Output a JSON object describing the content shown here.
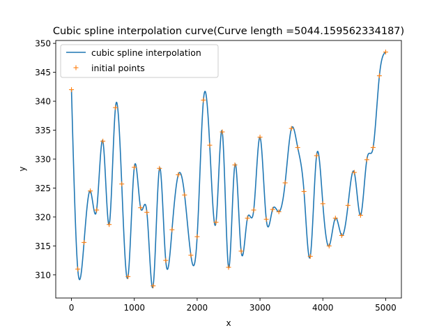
{
  "chart_data": {
    "type": "line",
    "title": "Cubic spline interpolation curve(Curve length =5044.159562334187)",
    "xlabel": "x",
    "ylabel": "y",
    "xlim": [
      -250,
      5250
    ],
    "ylim": [
      306,
      350.5
    ],
    "xticks": [
      0,
      1000,
      2000,
      3000,
      4000,
      5000
    ],
    "yticks": [
      310,
      315,
      320,
      325,
      330,
      335,
      340,
      345,
      350
    ],
    "legend_position": "upper-left",
    "grid": false,
    "colors": {
      "curve": "#1f77b4",
      "points": "#ff7f0e"
    },
    "series": [
      {
        "name": "cubic spline interpolation",
        "style": "line",
        "source": "spline-of-points"
      },
      {
        "name": "initial points",
        "style": "marker-plus",
        "x": [
          0,
          100,
          200,
          300,
          400,
          500,
          600,
          700,
          800,
          900,
          1000,
          1100,
          1200,
          1300,
          1400,
          1500,
          1600,
          1700,
          1800,
          1900,
          2000,
          2100,
          2200,
          2300,
          2400,
          2500,
          2600,
          2700,
          2800,
          2900,
          3000,
          3100,
          3200,
          3300,
          3400,
          3500,
          3600,
          3700,
          3800,
          3900,
          4000,
          4100,
          4200,
          4300,
          4400,
          4500,
          4600,
          4700,
          4800,
          4900,
          5000
        ],
        "y": [
          342.0,
          311.0,
          315.6,
          324.5,
          321.2,
          333.1,
          318.7,
          338.9,
          325.7,
          309.7,
          328.6,
          321.6,
          320.8,
          308.1,
          328.4,
          312.5,
          317.8,
          327.3,
          323.8,
          313.4,
          316.6,
          340.2,
          332.4,
          319.1,
          334.7,
          311.3,
          329.0,
          314.1,
          319.8,
          321.2,
          333.8,
          319.6,
          321.3,
          320.9,
          325.9,
          335.3,
          332.0,
          324.4,
          313.2,
          330.6,
          322.3,
          315.0,
          319.8,
          316.8,
          322.0,
          327.7,
          320.3,
          329.9,
          332.0,
          344.4,
          348.5
        ]
      }
    ]
  }
}
